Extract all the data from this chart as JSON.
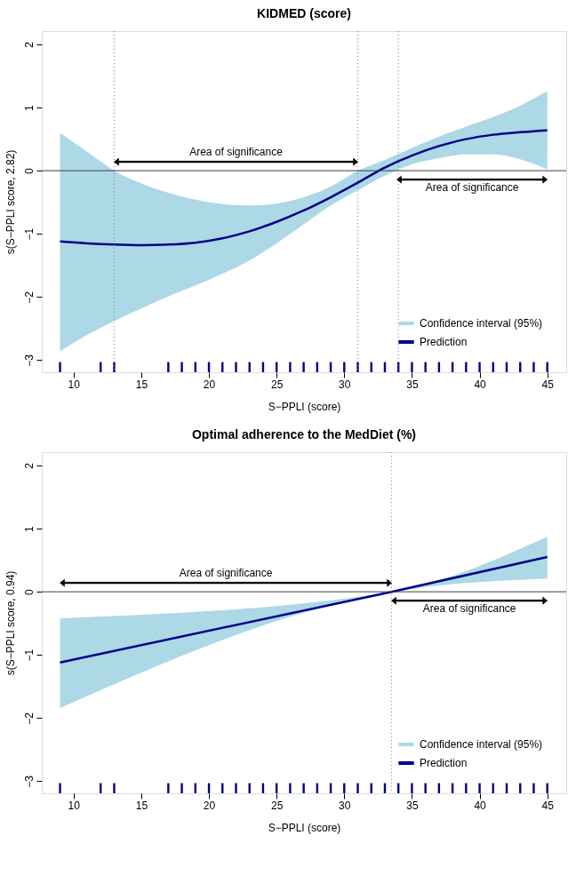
{
  "chart_data": [
    {
      "type": "line",
      "title": "KIDMED (score)",
      "xlabel": "S−PPLI (score)",
      "ylabel": "s(S−PPLI score, 2.82)",
      "xlim": [
        7.65,
        46.4
      ],
      "ylim": [
        -3.19,
        2.21
      ],
      "xticks": [
        10,
        15,
        20,
        25,
        30,
        35,
        40,
        45
      ],
      "yticks": [
        -3,
        -2,
        -1,
        0,
        1,
        2
      ],
      "grid": false,
      "legend": "bottom right",
      "series": [
        {
          "name": "Prediction",
          "color": "#00008b",
          "line_style": "solid",
          "x": [
            9,
            11,
            13,
            15,
            17,
            19,
            21,
            23,
            25,
            27,
            29,
            31,
            33,
            35,
            37,
            39,
            41,
            43,
            45
          ],
          "values": [
            -1.12,
            -1.15,
            -1.17,
            -1.18,
            -1.17,
            -1.14,
            -1.07,
            -0.96,
            -0.81,
            -0.63,
            -0.42,
            -0.19,
            0.05,
            0.24,
            0.39,
            0.5,
            0.57,
            0.61,
            0.64
          ],
          "lower": [
            -2.86,
            -2.6,
            -2.38,
            -2.18,
            -1.99,
            -1.82,
            -1.63,
            -1.42,
            -1.15,
            -0.85,
            -0.55,
            -0.31,
            -0.08,
            0.1,
            0.2,
            0.26,
            0.26,
            0.18,
            0.02
          ],
          "upper": [
            0.6,
            0.3,
            0.0,
            -0.2,
            -0.35,
            -0.46,
            -0.53,
            -0.55,
            -0.52,
            -0.42,
            -0.25,
            0.0,
            0.17,
            0.36,
            0.54,
            0.7,
            0.85,
            1.03,
            1.26
          ]
        },
        {
          "type": "bar",
          "color": "#00008b",
          "x": [
            9,
            12,
            13,
            17,
            18,
            19,
            20,
            21,
            22,
            23,
            24,
            25,
            26,
            27,
            28,
            29,
            30,
            31,
            32,
            33,
            34,
            35,
            36,
            37,
            38,
            39,
            40,
            41,
            42,
            43,
            44,
            45
          ],
          "base": [
            -3.19,
            -3.19,
            -3.19,
            -3.19,
            -3.19,
            -3.19,
            -3.19,
            -3.19,
            -3.19,
            -3.19,
            -3.19,
            -3.19,
            -3.19,
            -3.19,
            -3.19,
            -3.19,
            -3.19,
            -3.19,
            -3.19,
            -3.19,
            -3.19,
            -3.19,
            -3.19,
            -3.19,
            -3.19,
            -3.19,
            -3.19,
            -3.19,
            -3.19,
            -3.19,
            -3.19,
            -3.19
          ],
          "values": [
            0.16,
            0.16,
            0.16,
            0.16,
            0.16,
            0.16,
            0.16,
            0.16,
            0.16,
            0.16,
            0.16,
            0.16,
            0.16,
            0.16,
            0.16,
            0.16,
            0.16,
            0.16,
            0.16,
            0.16,
            0.16,
            0.16,
            0.16,
            0.16,
            0.16,
            0.16,
            0.16,
            0.16,
            0.16,
            0.16,
            0.16,
            0.16
          ]
        }
      ],
      "ref_lines": [
        {
          "axis": "x",
          "value": 13,
          "color": "#808080",
          "line_style": "dotted"
        },
        {
          "axis": "x",
          "value": 31,
          "color": "#808080",
          "line_style": "dotted"
        },
        {
          "axis": "x",
          "value": 34,
          "color": "#808080",
          "line_style": "dotted"
        },
        {
          "axis": "y",
          "value": 0,
          "color": "#404040",
          "line_style": "solid"
        }
      ],
      "annotations": [
        "Area of significance",
        "Area of significance",
        "Confidence interval (95%)"
      ]
    },
    {
      "type": "line",
      "title": "Optimal adherence to the MedDiet (%)",
      "xlabel": "S−PPLI (score)",
      "ylabel": "s(S−PPLI score, 0.94)",
      "xlim": [
        7.65,
        46.4
      ],
      "ylim": [
        -3.19,
        2.21
      ],
      "xticks": [
        10,
        15,
        20,
        25,
        30,
        35,
        40,
        45
      ],
      "yticks": [
        -3,
        -2,
        -1,
        0,
        1,
        2
      ],
      "grid": false,
      "legend": "bottom right",
      "series": [
        {
          "name": "Prediction",
          "color": "#00008b",
          "line_style": "solid",
          "x": [
            9,
            33.5,
            45
          ],
          "values": [
            -1.12,
            0,
            0.55
          ],
          "lower": [
            -1.84,
            0,
            0.21
          ],
          "upper": [
            -0.42,
            0,
            0.87
          ]
        },
        {
          "type": "bar",
          "color": "#00008b",
          "x": [
            9,
            12,
            13,
            17,
            18,
            19,
            20,
            21,
            22,
            23,
            24,
            25,
            26,
            27,
            28,
            29,
            30,
            31,
            32,
            33,
            34,
            35,
            36,
            37,
            38,
            39,
            40,
            41,
            42,
            43,
            44,
            45
          ],
          "base": [
            -3.19,
            -3.19,
            -3.19,
            -3.19,
            -3.19,
            -3.19,
            -3.19,
            -3.19,
            -3.19,
            -3.19,
            -3.19,
            -3.19,
            -3.19,
            -3.19,
            -3.19,
            -3.19,
            -3.19,
            -3.19,
            -3.19,
            -3.19,
            -3.19,
            -3.19,
            -3.19,
            -3.19,
            -3.19,
            -3.19,
            -3.19,
            -3.19,
            -3.19,
            -3.19,
            -3.19,
            -3.19
          ],
          "values": [
            0.16,
            0.16,
            0.16,
            0.16,
            0.16,
            0.16,
            0.16,
            0.16,
            0.16,
            0.16,
            0.16,
            0.16,
            0.16,
            0.16,
            0.16,
            0.16,
            0.16,
            0.16,
            0.16,
            0.16,
            0.16,
            0.16,
            0.16,
            0.16,
            0.16,
            0.16,
            0.16,
            0.16,
            0.16,
            0.16,
            0.16,
            0.16
          ]
        }
      ],
      "ref_lines": [
        {
          "axis": "x",
          "value": 33.5,
          "color": "#808080",
          "line_style": "dotted"
        },
        {
          "axis": "y",
          "value": 0,
          "color": "#404040",
          "line_style": "solid"
        }
      ],
      "annotations": [
        "Area of significance",
        "Area of significance",
        "Confidence interval (95%)"
      ]
    }
  ]
}
